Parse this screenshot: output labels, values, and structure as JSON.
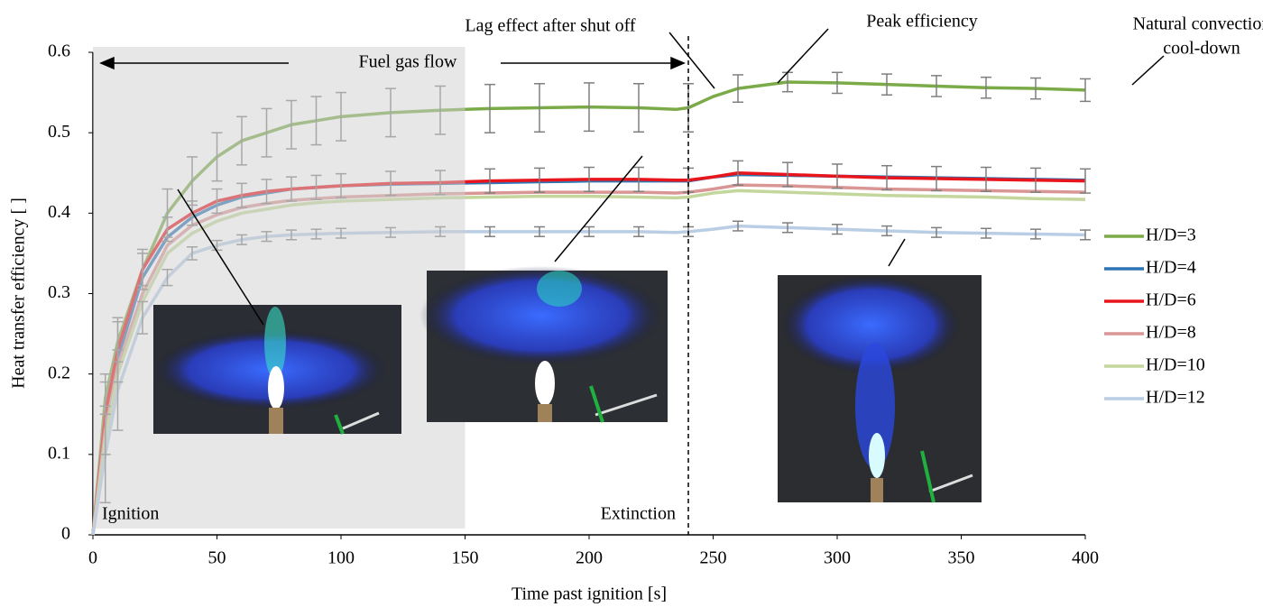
{
  "chart_data": {
    "type": "line",
    "x_label": "Time past ignition [s]",
    "y_label": "Heat transfer efficiency [ ]",
    "x": [
      0,
      5,
      10,
      20,
      30,
      40,
      50,
      60,
      70,
      80,
      90,
      100,
      120,
      140,
      160,
      180,
      200,
      220,
      235,
      240,
      250,
      260,
      280,
      300,
      320,
      340,
      360,
      380,
      400
    ],
    "xlim": [
      0,
      400
    ],
    "xticks": [
      0,
      50,
      100,
      150,
      200,
      250,
      300,
      350,
      400
    ],
    "ylim": [
      0,
      0.6
    ],
    "yticks": [
      0,
      0.1,
      0.2,
      0.3,
      0.4,
      0.5,
      0.6
    ],
    "error_bar_color": "#7f7f7f",
    "shaded_range": [
      0,
      150
    ],
    "shutoff_line": 240,
    "series": [
      {
        "name": "H/D=3",
        "color": "#7aab48",
        "values": [
          0,
          0.17,
          0.24,
          0.33,
          0.4,
          0.44,
          0.47,
          0.49,
          0.5,
          0.51,
          0.515,
          0.52,
          0.525,
          0.528,
          0.53,
          0.531,
          0.532,
          0.531,
          0.529,
          0.531,
          0.545,
          0.555,
          0.563,
          0.562,
          0.56,
          0.558,
          0.556,
          0.555,
          0.553
        ],
        "errors": [
          null,
          0.02,
          0.025,
          0.025,
          0.03,
          0.03,
          0.03,
          0.03,
          0.03,
          0.03,
          0.03,
          0.03,
          0.03,
          0.03,
          0.03,
          0.03,
          0.03,
          0.03,
          null,
          0.03,
          null,
          0.017,
          0.012,
          0.013,
          0.013,
          0.013,
          0.013,
          0.013,
          0.014
        ]
      },
      {
        "name": "H/D=4",
        "color": "#2e75b6",
        "values": [
          0,
          0.14,
          0.22,
          0.32,
          0.37,
          0.395,
          0.41,
          0.42,
          0.425,
          0.43,
          0.432,
          0.434,
          0.436,
          0.437,
          0.438,
          0.439,
          0.44,
          0.44,
          0.44,
          0.44,
          0.445,
          0.448,
          0.447,
          0.446,
          0.445,
          0.444,
          0.443,
          0.442,
          0.441
        ]
      },
      {
        "name": "H/D=6",
        "color": "#e8161c",
        "values": [
          0,
          0.15,
          0.23,
          0.33,
          0.38,
          0.4,
          0.415,
          0.422,
          0.427,
          0.43,
          0.432,
          0.434,
          0.437,
          0.438,
          0.44,
          0.441,
          0.442,
          0.442,
          0.441,
          0.441,
          0.445,
          0.45,
          0.448,
          0.446,
          0.444,
          0.443,
          0.442,
          0.441,
          0.44
        ],
        "errors": [
          null,
          0.05,
          0.04,
          0.02,
          0.015,
          0.015,
          0.015,
          0.015,
          0.015,
          0.015,
          0.015,
          0.015,
          0.015,
          0.015,
          0.015,
          0.015,
          0.015,
          0.015,
          null,
          0.015,
          null,
          0.015,
          0.015,
          0.015,
          0.015,
          0.015,
          0.015,
          0.015,
          0.015
        ]
      },
      {
        "name": "H/D=8",
        "color": "#d99694",
        "values": [
          0,
          0.13,
          0.21,
          0.3,
          0.36,
          0.385,
          0.398,
          0.407,
          0.412,
          0.416,
          0.418,
          0.42,
          0.422,
          0.424,
          0.425,
          0.426,
          0.426,
          0.426,
          0.425,
          0.426,
          0.43,
          0.435,
          0.434,
          0.432,
          0.43,
          0.429,
          0.428,
          0.427,
          0.426
        ]
      },
      {
        "name": "H/D=10",
        "color": "#c3d69b",
        "values": [
          0,
          0.12,
          0.2,
          0.29,
          0.35,
          0.375,
          0.39,
          0.4,
          0.405,
          0.41,
          0.413,
          0.415,
          0.417,
          0.419,
          0.42,
          0.421,
          0.421,
          0.42,
          0.419,
          0.42,
          0.425,
          0.428,
          0.426,
          0.424,
          0.422,
          0.421,
          0.42,
          0.418,
          0.417
        ]
      },
      {
        "name": "H/D=12",
        "color": "#b9cde5",
        "values": [
          0,
          0.1,
          0.18,
          0.27,
          0.32,
          0.35,
          0.36,
          0.367,
          0.371,
          0.373,
          0.374,
          0.375,
          0.376,
          0.377,
          0.377,
          0.377,
          0.377,
          0.377,
          0.376,
          0.377,
          0.38,
          0.384,
          0.382,
          0.38,
          0.378,
          0.376,
          0.375,
          0.374,
          0.373
        ],
        "errors": [
          null,
          0.06,
          0.05,
          0.02,
          0.01,
          0.008,
          0.006,
          0.006,
          0.006,
          0.006,
          0.006,
          0.006,
          0.006,
          0.006,
          0.006,
          0.006,
          0.006,
          0.006,
          null,
          0.006,
          null,
          0.006,
          0.006,
          0.006,
          0.006,
          0.006,
          0.006,
          0.006,
          0.006
        ]
      }
    ],
    "annotations": {
      "fuel_gas_flow": "Fuel gas flow",
      "lag_effect": "Lag effect after shut off",
      "peak": "Peak efficiency",
      "cool_down": [
        "Natural convection",
        "cool-down"
      ],
      "ignition": "Ignition",
      "extinction": "Extinction"
    }
  }
}
